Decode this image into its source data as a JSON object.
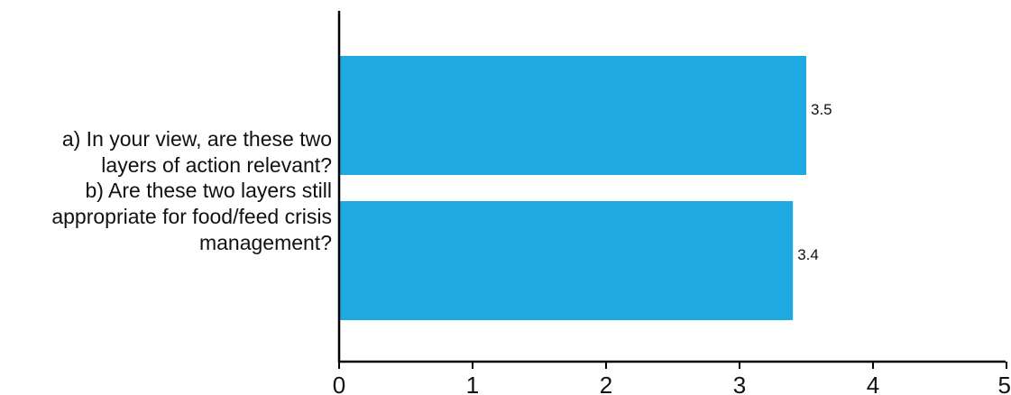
{
  "chart_data": {
    "type": "bar",
    "orientation": "horizontal",
    "categories": [
      "a) In your view, are these two layers of action relevant?",
      "b) Are these two layers still appropriate for food/feed crisis management?"
    ],
    "category_lines": [
      [
        "a) In your view, are these two",
        "layers of action relevant?"
      ],
      [
        "b) Are these two layers still",
        "appropriate for food/feed crisis",
        "management?"
      ]
    ],
    "values": [
      3.5,
      3.4
    ],
    "data_labels": [
      "3.5",
      "3.4"
    ],
    "xlim": [
      0,
      5
    ],
    "xticks": [
      "0",
      "1",
      "2",
      "3",
      "4",
      "5"
    ],
    "bar_color": "#1fa9e1",
    "axis_color": "#000000",
    "grid": false,
    "legend": "none",
    "title": "",
    "xlabel": "",
    "ylabel": ""
  }
}
